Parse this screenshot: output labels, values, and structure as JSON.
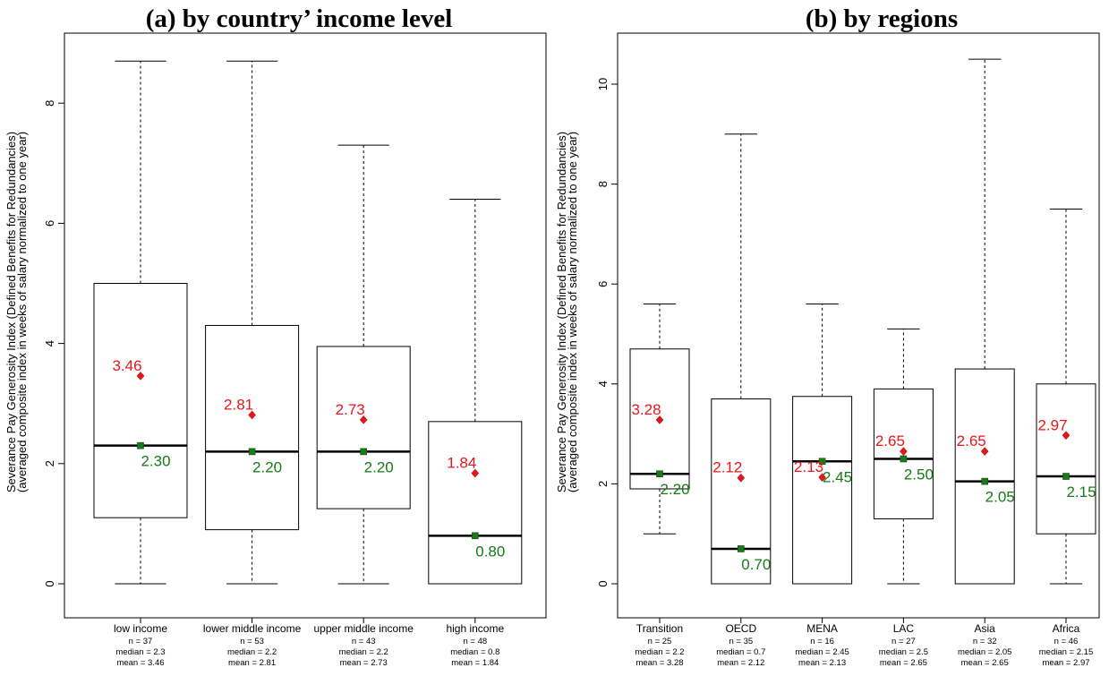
{
  "colors": {
    "mean": "#e8161b",
    "median_marker": "#1a7a1a",
    "median_label": "#167a16",
    "box": "#000000"
  },
  "chart_data": [
    {
      "type": "boxplot",
      "title": "(a) by country’ income level",
      "ylabel": [
        "Severance Pay Generosity Index (Defined Benefits for Redundancies)",
        "(averaged composite index in weeks of salary normalized to one year)"
      ],
      "ylim": [
        0,
        8.9
      ],
      "yticks": [
        0,
        2,
        4,
        6,
        8
      ],
      "grid": false,
      "groups": [
        {
          "name": "low income",
          "n": "n = 37",
          "median_text": "median = 2.3",
          "mean_text": "mean = 3.46",
          "min": 0,
          "q1": 1.1,
          "median": 2.3,
          "q3": 5.0,
          "max": 8.7,
          "mean": 3.46,
          "mean_label": "3.46",
          "median_label": "2.30"
        },
        {
          "name": "lower middle income",
          "n": "n = 53",
          "median_text": "median = 2.2",
          "mean_text": "mean = 2.81",
          "min": 0,
          "q1": 0.9,
          "median": 2.2,
          "q3": 4.3,
          "max": 8.7,
          "mean": 2.81,
          "mean_label": "2.81",
          "median_label": "2.20"
        },
        {
          "name": "upper middle income",
          "n": "n = 43",
          "median_text": "median = 2.2",
          "mean_text": "mean = 2.73",
          "min": 0,
          "q1": 1.25,
          "median": 2.2,
          "q3": 3.95,
          "max": 7.3,
          "mean": 2.73,
          "mean_label": "2.73",
          "median_label": "2.20"
        },
        {
          "name": "high income",
          "n": "n = 48",
          "median_text": "median = 0.8",
          "mean_text": "mean = 1.84",
          "min": 0,
          "q1": 0,
          "median": 0.8,
          "q3": 2.7,
          "max": 6.4,
          "mean": 1.84,
          "mean_label": "1.84",
          "median_label": "0.80"
        }
      ]
    },
    {
      "type": "boxplot",
      "title": "(b) by regions",
      "ylabel": [
        "Severance Pay Generosity Index (Defined Benefits for Redundancies)",
        "(averaged composite index in weeks of salary normalized to one year)"
      ],
      "ylim": [
        0,
        10.8
      ],
      "yticks": [
        0,
        2,
        4,
        6,
        8,
        10
      ],
      "grid": false,
      "groups": [
        {
          "name": "Transition",
          "n": "n = 25",
          "median_text": "median = 2.2",
          "mean_text": "mean = 3.28",
          "min": 1.0,
          "q1": 1.9,
          "median": 2.2,
          "q3": 4.7,
          "max": 5.6,
          "mean": 3.28,
          "mean_label": "3.28",
          "median_label": "2.20"
        },
        {
          "name": "OECD",
          "n": "n = 35",
          "median_text": "median = 0.7",
          "mean_text": "mean = 2.12",
          "min": 0,
          "q1": 0,
          "median": 0.7,
          "q3": 3.7,
          "max": 9.0,
          "mean": 2.12,
          "mean_label": "2.12",
          "median_label": "0.70"
        },
        {
          "name": "MENA",
          "n": "n = 16",
          "median_text": "median = 2.45",
          "mean_text": "mean = 2.13",
          "min": 0,
          "q1": 0,
          "median": 2.45,
          "q3": 3.75,
          "max": 5.6,
          "mean": 2.13,
          "mean_label": "2.13",
          "median_label": "2.45"
        },
        {
          "name": "LAC",
          "n": "n = 27",
          "median_text": "median = 2.5",
          "mean_text": "mean = 2.65",
          "min": 0,
          "q1": 1.3,
          "median": 2.5,
          "q3": 3.9,
          "max": 5.1,
          "mean": 2.65,
          "mean_label": "2.65",
          "median_label": "2.50"
        },
        {
          "name": "Asia",
          "n": "n = 32",
          "median_text": "median = 2.05",
          "mean_text": "mean = 2.65",
          "min": 0,
          "q1": 0,
          "median": 2.05,
          "q3": 4.3,
          "max": 10.5,
          "mean": 2.65,
          "mean_label": "2.65",
          "median_label": "2.05"
        },
        {
          "name": "Africa",
          "n": "n = 46",
          "median_text": "median = 2.15",
          "mean_text": "mean = 2.97",
          "min": 0,
          "q1": 1.0,
          "median": 2.15,
          "q3": 4.0,
          "max": 7.5,
          "mean": 2.97,
          "mean_label": "2.97",
          "median_label": "2.15"
        }
      ]
    }
  ]
}
